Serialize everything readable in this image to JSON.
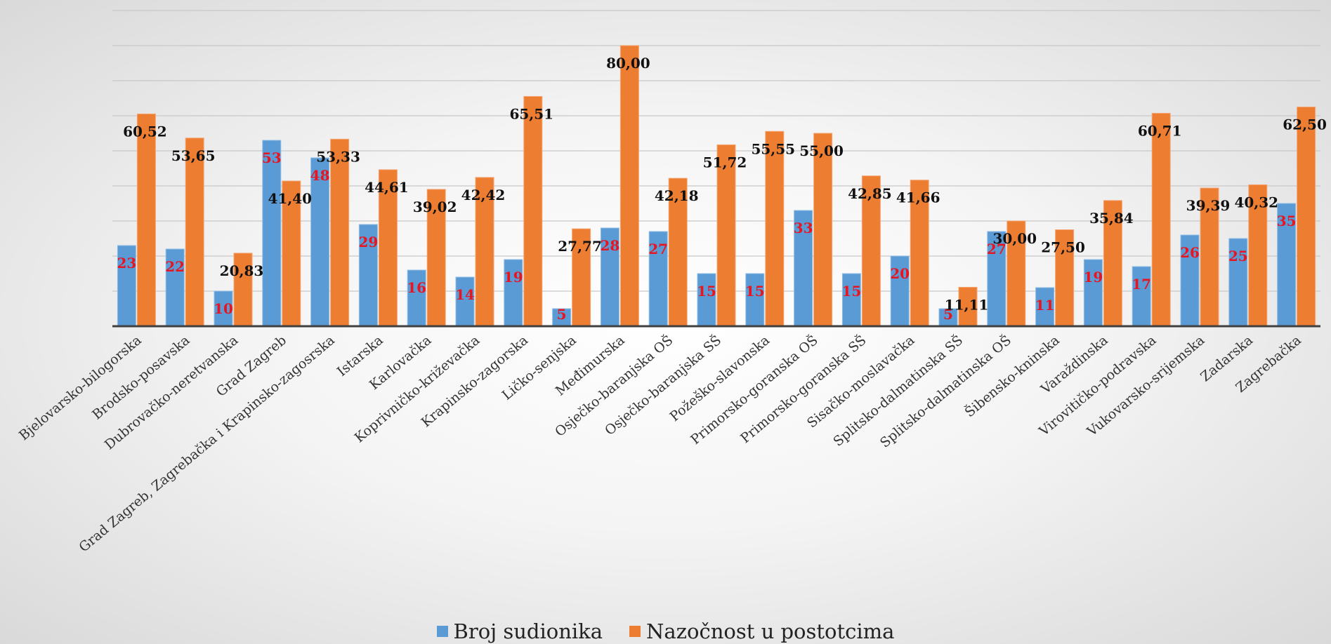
{
  "chart_data": {
    "type": "bar",
    "categories": [
      "Bjelovarsko-bilogorska",
      "Brodsko-posavska",
      "Dubrovačko-neretvanska",
      "Grad Zagreb",
      "Grad Zagreb, Zagrebačka i Krapinsko-zagosrska",
      "Istarska",
      "Karlovačka",
      "Koprivničko-križevačka",
      "Krapinsko-zagorska",
      "Ličko-senjska",
      "Međimurska",
      "Osječko-baranjska OŠ",
      "Osječko-baranjska SŠ",
      "Požeško-slavonska",
      "Primorsko-goranska OŠ",
      "Primorsko-goranska SŠ",
      "Sisačko-moslavačka",
      "Splitsko-dalmatinska SŠ",
      "Splitsko-dalmatinska OŠ",
      "Šibensko-kninska",
      "Varaždinska",
      "Virovitičko-podravska",
      "Vukovarsko-srijemska",
      "Zadarska",
      "Zagrebačka"
    ],
    "series": [
      {
        "name": "Broj sudionika",
        "color": "#5b9bd5",
        "label_color": "#e8141f",
        "values": [
          23,
          22,
          10,
          53,
          48,
          29,
          16,
          14,
          19,
          5,
          28,
          27,
          15,
          15,
          33,
          15,
          20,
          5,
          27,
          11,
          19,
          17,
          26,
          25,
          35
        ],
        "labels": [
          "23",
          "22",
          "10",
          "53",
          "48",
          "29",
          "16",
          "14",
          "19",
          "5",
          "28",
          "27",
          "15",
          "15",
          "33",
          "15",
          "20",
          "5",
          "27",
          "11",
          "19",
          "17",
          "26",
          "25",
          "35"
        ]
      },
      {
        "name": "Nazočnost u postotcima",
        "color": "#ed7d31",
        "label_color": "#111111",
        "values": [
          60.52,
          53.65,
          20.83,
          41.4,
          53.33,
          44.61,
          39.02,
          42.42,
          65.51,
          27.77,
          80.0,
          42.18,
          51.72,
          55.55,
          55.0,
          42.85,
          41.66,
          11.11,
          30.0,
          27.5,
          35.84,
          60.71,
          39.39,
          40.32,
          62.5
        ],
        "labels": [
          "60,52",
          "53,65",
          "20,83",
          "41,40",
          "53,33",
          "44,61",
          "39,02",
          "42,42",
          "65,51",
          "27,77",
          "80,00",
          "42,18",
          "51,72",
          "55,55",
          "55,00",
          "42,85",
          "41,66",
          "11,11",
          "30,00",
          "27,50",
          "35,84",
          "60,71",
          "39,39",
          "40,32",
          "62,50"
        ]
      }
    ],
    "ylim": [
      0,
      90
    ],
    "grid": true,
    "legend_position": "bottom"
  }
}
